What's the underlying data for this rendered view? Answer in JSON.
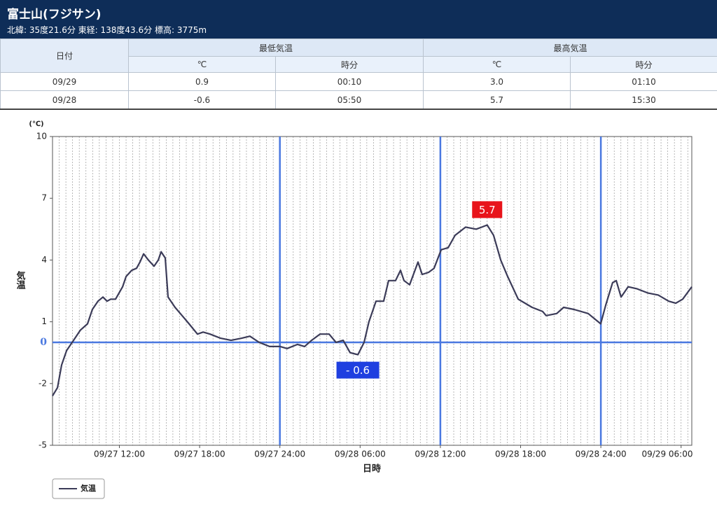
{
  "header": {
    "title": "富士山(フジサン)",
    "subtitle": "北緯: 35度21.6分 東経: 138度43.6分 標高: 3775m"
  },
  "table": {
    "date_header": "日付",
    "groups": [
      "最低気温",
      "最高気温"
    ],
    "subheaders": [
      "℃",
      "時分",
      "℃",
      "時分"
    ],
    "rows": [
      [
        "09/29",
        "0.9",
        "00:10",
        "3.0",
        "01:10"
      ],
      [
        "09/28",
        "-0.6",
        "05:50",
        "5.7",
        "15:30"
      ]
    ]
  },
  "chart_data": {
    "type": "line",
    "y_unit_label": "(℃)",
    "y_label": "気温",
    "x_label": "日時",
    "xlim": [
      7,
      54.8
    ],
    "xticks": [
      {
        "value": 12,
        "label": "09/27 12:00"
      },
      {
        "value": 18,
        "label": "09/27 18:00"
      },
      {
        "value": 24,
        "label": "09/27 24:00"
      },
      {
        "value": 30,
        "label": "09/28 06:00"
      },
      {
        "value": 36,
        "label": "09/28 12:00"
      },
      {
        "value": 42,
        "label": "09/28 18:00"
      },
      {
        "value": 48,
        "label": "09/28 24:00"
      },
      {
        "value": 54,
        "label": "09/29 06:00"
      }
    ],
    "ylim": [
      -5,
      10
    ],
    "yticks": [
      -5,
      -2,
      0,
      1,
      4,
      7,
      10
    ],
    "grid": "x",
    "x_minor_step": 0.5,
    "highlight_x": [
      24,
      36,
      48
    ],
    "highlight_color": "#4a78e0",
    "x": [
      7.0,
      7.37,
      7.68,
      8.05,
      8.57,
      9.09,
      9.62,
      9.98,
      10.4,
      10.77,
      11.08,
      11.35,
      11.71,
      12.24,
      12.5,
      12.92,
      13.28,
      13.54,
      13.81,
      14.17,
      14.59,
      14.91,
      15.12,
      15.43,
      15.64,
      16.16,
      16.69,
      17.21,
      17.84,
      18.26,
      18.78,
      19.57,
      20.35,
      21.14,
      21.76,
      22.45,
      23.23,
      24.02,
      24.54,
      25.32,
      25.85,
      26.37,
      27.0,
      27.68,
      28.2,
      28.73,
      29.25,
      29.83,
      30.3,
      30.66,
      31.19,
      31.76,
      32.13,
      32.65,
      33.02,
      33.28,
      33.7,
      34.33,
      34.64,
      35.12,
      35.53,
      36.06,
      36.58,
      37.1,
      37.89,
      38.68,
      39.1,
      39.5,
      39.98,
      40.51,
      41.03,
      41.82,
      42.86,
      43.65,
      43.91,
      44.7,
      45.22,
      46.0,
      47.05,
      47.99,
      48.36,
      48.88,
      49.15,
      49.51,
      50.04,
      50.72,
      51.5,
      52.29,
      53.07,
      53.6,
      54.12,
      54.8
    ],
    "series": [
      {
        "name": "気温",
        "color": "#3b3b58",
        "values": [
          -2.6,
          -2.2,
          -1.1,
          -0.4,
          0.1,
          0.6,
          0.9,
          1.6,
          2.0,
          2.2,
          2.0,
          2.1,
          2.1,
          2.7,
          3.2,
          3.5,
          3.6,
          3.9,
          4.3,
          4.0,
          3.7,
          4.0,
          4.4,
          4.1,
          2.2,
          1.7,
          1.3,
          0.9,
          0.4,
          0.5,
          0.4,
          0.2,
          0.1,
          0.2,
          0.3,
          0.0,
          -0.2,
          -0.2,
          -0.3,
          -0.1,
          -0.2,
          0.1,
          0.4,
          0.4,
          0.0,
          0.1,
          -0.5,
          -0.6,
          0.0,
          1.0,
          2.0,
          2.0,
          3.0,
          3.0,
          3.5,
          3.0,
          2.8,
          3.9,
          3.3,
          3.4,
          3.6,
          4.5,
          4.6,
          5.2,
          5.6,
          5.5,
          5.6,
          5.7,
          5.2,
          4.0,
          3.2,
          2.1,
          1.7,
          1.5,
          1.3,
          1.4,
          1.7,
          1.6,
          1.4,
          0.9,
          1.8,
          2.9,
          3.0,
          2.2,
          2.7,
          2.6,
          2.4,
          2.3,
          2.0,
          1.9,
          2.1,
          2.7
        ]
      }
    ],
    "annotations": [
      {
        "label": "5.7",
        "value": 5.7,
        "x": 39.5,
        "color": "#e8141b",
        "position": "above"
      },
      {
        "label": "- 0.6",
        "value": -0.6,
        "x": 29.83,
        "color": "#1f3fe0",
        "position": "below"
      }
    ],
    "legend": "bottom-left"
  }
}
